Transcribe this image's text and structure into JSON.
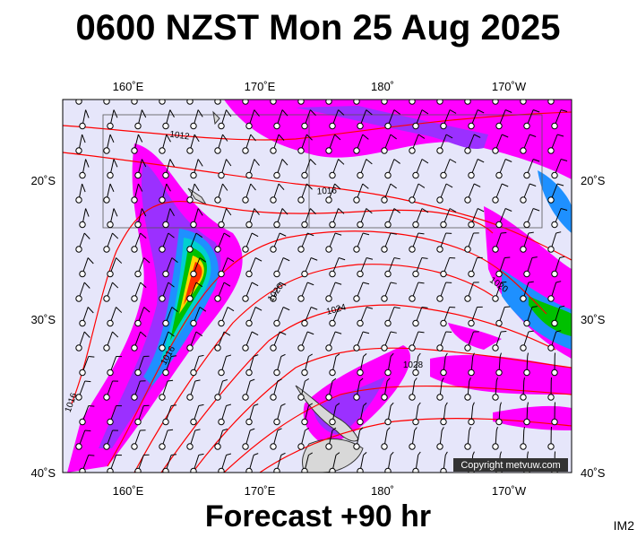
{
  "header": {
    "title": "0600 NZST Mon 25 Aug 2025"
  },
  "map": {
    "lon_labels": [
      "160˚E",
      "170˚E",
      "180˚",
      "170˚W"
    ],
    "lat_labels": [
      "20˚S",
      "30˚S",
      "40˚S"
    ],
    "isobar_labels": [
      "1012",
      "1016",
      "1020",
      "1024",
      "1028",
      "1020",
      "1016",
      "1016"
    ],
    "copyright": "Copyright metvuw.com"
  },
  "footer": {
    "forecast": "Forecast +90 hr",
    "image_id": "IM2"
  }
}
